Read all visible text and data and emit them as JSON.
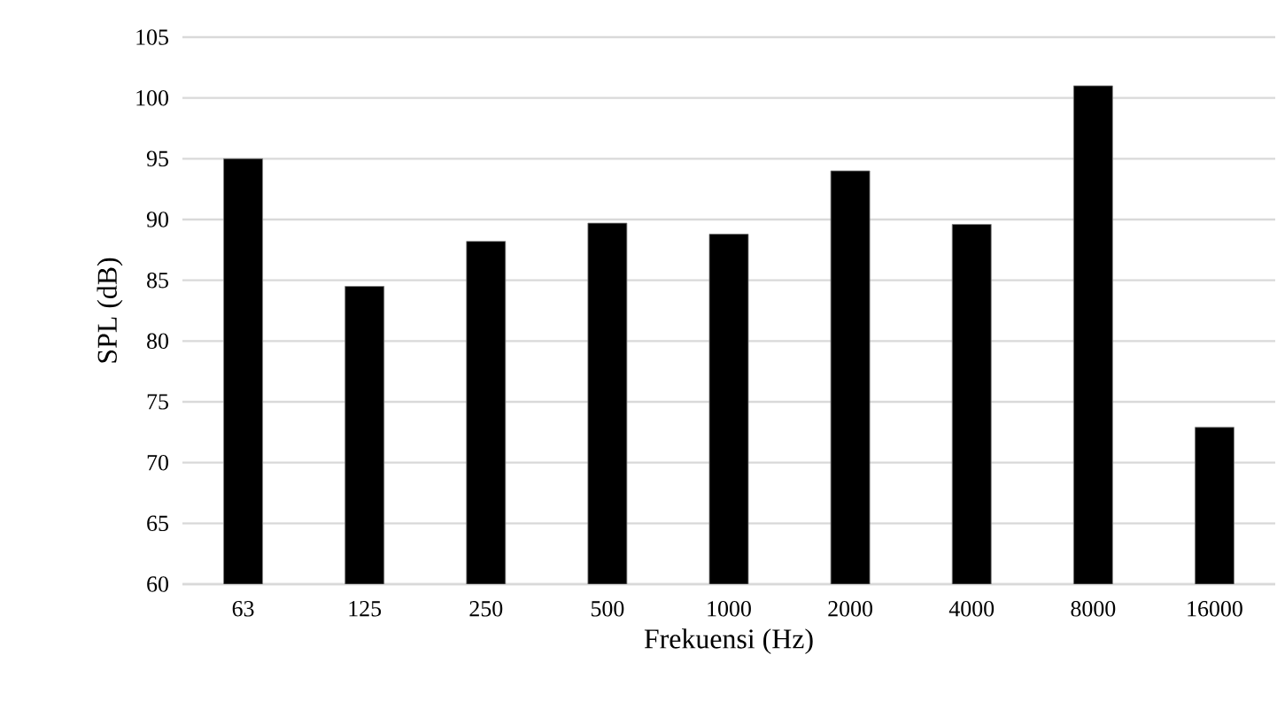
{
  "chart_data": {
    "type": "bar",
    "xlabel": "Frekuensi (Hz)",
    "ylabel": "SPL (dB)",
    "categories": [
      "63",
      "125",
      "250",
      "500",
      "1000",
      "2000",
      "4000",
      "8000",
      "16000"
    ],
    "values": [
      95.0,
      84.5,
      88.2,
      89.7,
      88.8,
      94.0,
      89.6,
      101.0,
      72.9
    ],
    "color": "#000000",
    "ylim": [
      60,
      105
    ],
    "yticks": [
      60,
      65,
      70,
      75,
      80,
      85,
      90,
      95,
      100,
      105
    ],
    "grid": "y"
  }
}
